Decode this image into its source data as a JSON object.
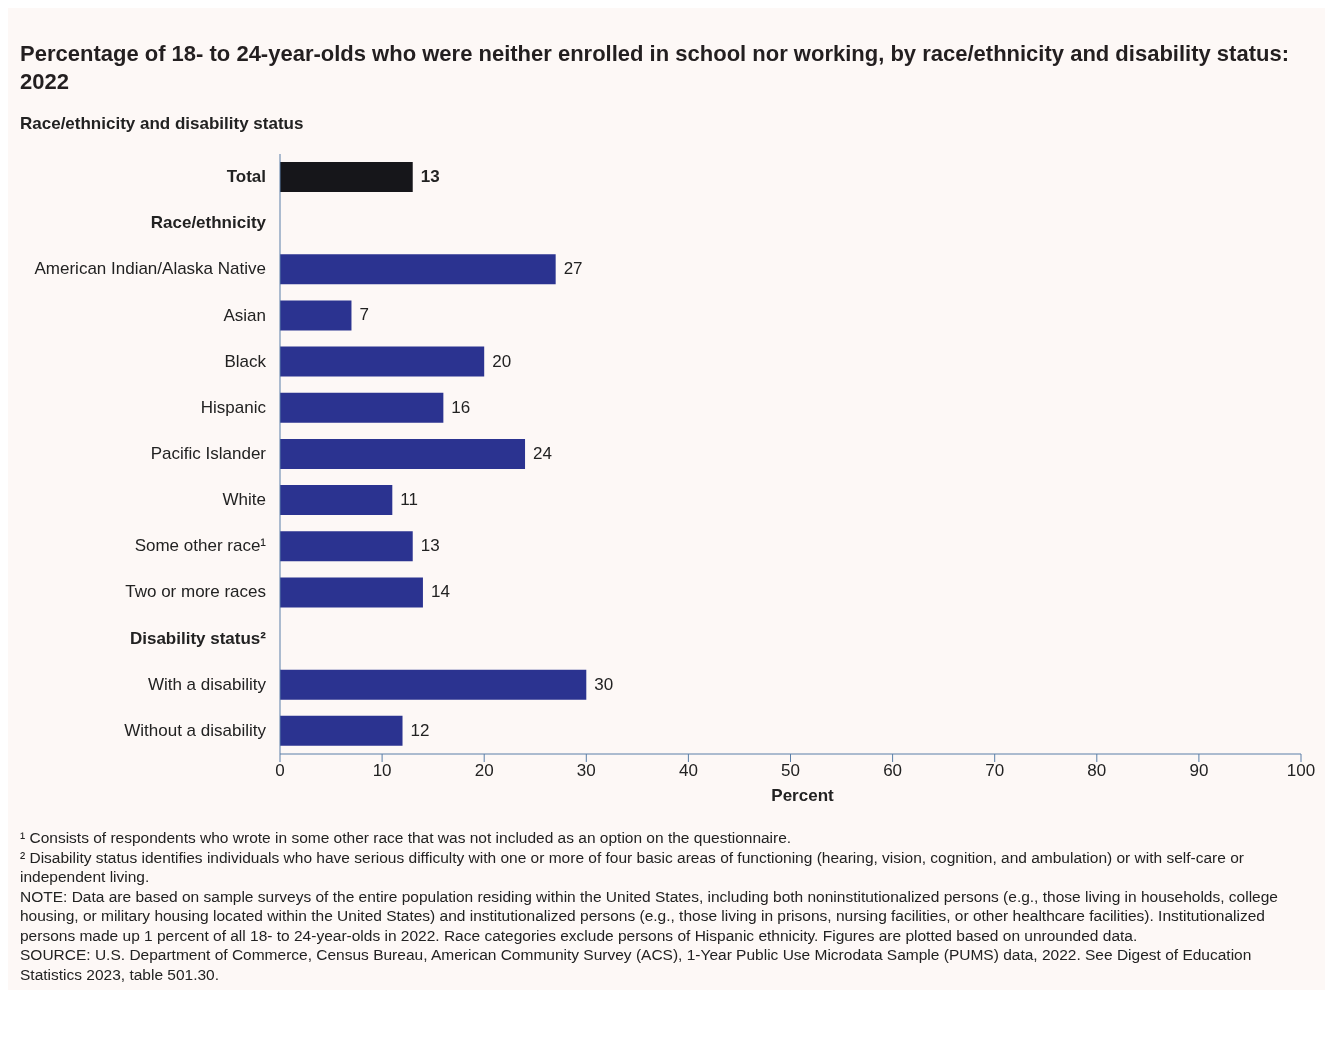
{
  "chart_data": {
    "type": "bar",
    "orientation": "horizontal",
    "title": "Percentage of 18- to 24-year-olds who were neither enrolled in school nor working, by race/ethnicity and disability status: 2022",
    "ylabel": "Race/ethnicity and disability status",
    "xlabel": "Percent",
    "categories": [
      "Total",
      "Race/ethnicity",
      "American Indian/Alaska Native",
      "Asian",
      "Black",
      "Hispanic",
      "Pacific Islander",
      "White",
      "Some other race¹",
      "Two or more races",
      "Disability status²",
      "With a disability",
      "Without a disability"
    ],
    "values": [
      13,
      null,
      27,
      7,
      20,
      16,
      24,
      11,
      13,
      14,
      null,
      30,
      12
    ],
    "colors": [
      "#16161a",
      null,
      "#2b3390",
      "#2b3390",
      "#2b3390",
      "#2b3390",
      "#2b3390",
      "#2b3390",
      "#2b3390",
      "#2b3390",
      null,
      "#2b3390",
      "#2b3390"
    ],
    "xlim": [
      0,
      100
    ],
    "xticks": [
      0,
      10,
      20,
      30,
      40,
      50,
      60,
      70,
      80,
      90,
      100
    ],
    "grid": false,
    "legend": false,
    "data_labels": true,
    "annotations": [
      "¹ Consists of respondents who wrote in some other race that was not included as an option on the questionnaire.",
      "² Disability status identifies individuals who have serious difficulty with one or more of four basic areas of functioning (hearing, vision, cognition, and ambulation) or with self-care or independent living.",
      "NOTE: Data are based on sample surveys of the entire population residing within the United States, including both noninstitutionalized persons (e.g., those living in households, college housing, or military housing located within the United States) and institutionalized persons (e.g., those living in prisons, nursing facilities, or other healthcare facilities). Institutionalized persons made up 1 percent of all 18- to 24-year-olds in 2022. Race categories exclude persons of Hispanic ethnicity. Figures are plotted based on unrounded data.",
      "SOURCE: U.S. Department of Commerce, Census Bureau, American Community Survey (ACS), 1-Year Public Use Microdata Sample (PUMS) data, 2022. See Digest of Education Statistics 2023, table 501.30."
    ]
  }
}
